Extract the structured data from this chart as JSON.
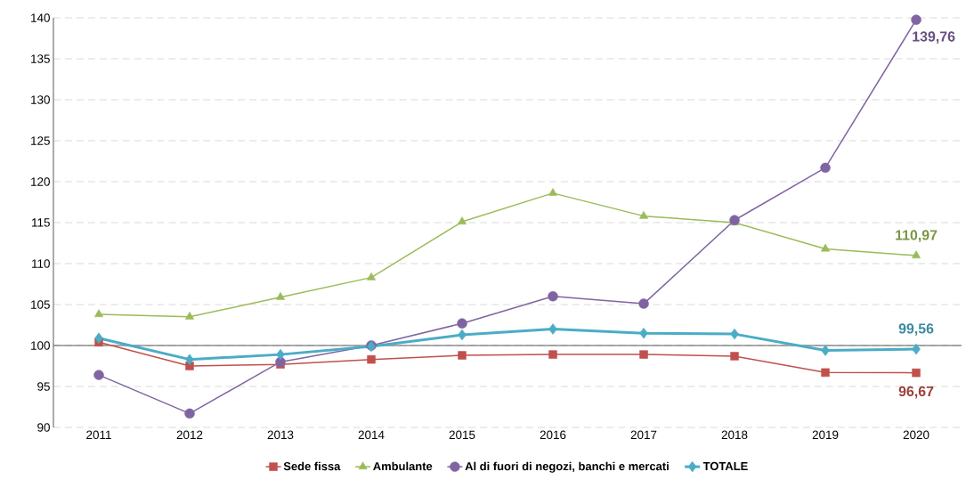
{
  "chart_data": {
    "type": "line",
    "categories": [
      "2011",
      "2012",
      "2013",
      "2014",
      "2015",
      "2016",
      "2017",
      "2018",
      "2019",
      "2020"
    ],
    "series": [
      {
        "name": "Sede fissa",
        "color": "#c0504d",
        "marker": "square",
        "values": [
          100.4,
          97.5,
          97.7,
          98.3,
          98.8,
          98.9,
          98.9,
          98.7,
          96.7,
          96.67
        ],
        "value_labels": [
          null,
          null,
          null,
          null,
          null,
          null,
          null,
          null,
          null,
          "96,67"
        ]
      },
      {
        "name": "Ambulante",
        "color": "#9bbb59",
        "marker": "triangle",
        "values": [
          103.8,
          103.5,
          105.9,
          108.3,
          115.1,
          118.6,
          115.8,
          115.0,
          111.8,
          110.97
        ],
        "value_labels": [
          null,
          null,
          null,
          null,
          null,
          null,
          null,
          null,
          null,
          "110,97"
        ]
      },
      {
        "name": "Al di fuori di negozi, banchi e mercati",
        "color": "#8064a2",
        "marker": "circle",
        "values": [
          96.4,
          91.7,
          98.0,
          100.0,
          102.7,
          106.0,
          105.1,
          115.3,
          121.7,
          139.76
        ],
        "value_labels": [
          null,
          null,
          null,
          null,
          null,
          null,
          null,
          null,
          null,
          "139,76"
        ]
      },
      {
        "name": "TOTALE",
        "color": "#4bacc6",
        "marker": "diamond",
        "values": [
          100.9,
          98.3,
          98.9,
          99.9,
          101.3,
          102.0,
          101.5,
          101.4,
          99.4,
          99.56
        ],
        "value_labels": [
          null,
          null,
          null,
          null,
          null,
          null,
          null,
          null,
          null,
          "99,56"
        ]
      }
    ],
    "ylim": [
      90,
      140
    ],
    "yticks": [
      90,
      95,
      100,
      105,
      110,
      115,
      120,
      125,
      130,
      135,
      140
    ],
    "grid": "y",
    "legend": "bottom",
    "ref_lines": [
      {
        "axis": "y",
        "value": 100,
        "color": "#595959"
      }
    ]
  }
}
